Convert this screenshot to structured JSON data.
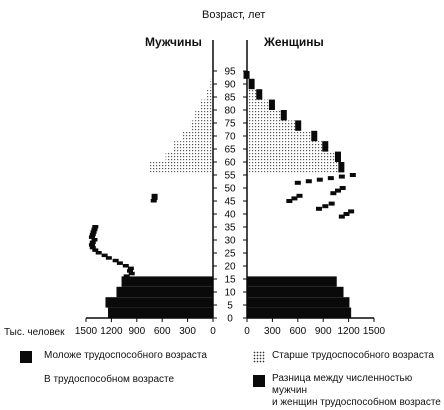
{
  "chart_data": {
    "type": "bar",
    "y_label": "Возраст, лет",
    "x_unit": "Тыс. человек",
    "left_title": "Мужчины",
    "right_title": "Женщины",
    "x_ticks": [
      0,
      300,
      600,
      900,
      1200,
      1500
    ],
    "y_ticks": [
      0,
      5,
      10,
      15,
      20,
      25,
      30,
      35,
      40,
      45,
      50,
      55,
      60,
      65,
      70,
      75,
      80,
      85,
      90,
      95
    ],
    "xlim": [
      0,
      1500
    ],
    "ylim": [
      0,
      100
    ],
    "series_names": {
      "young": "Моложе трудоспособного возраста",
      "working": "В трудоспособном возрасте",
      "old": "Старше трудоспособного возраста",
      "difference": "Разница между численностью мужчин и женщин трудоспособном возрасте"
    },
    "bands": [
      {
        "range": [
          0,
          4
        ],
        "men": 1240,
        "women": 1230,
        "category": "young"
      },
      {
        "range": [
          4,
          8
        ],
        "men": 1270,
        "women": 1210,
        "category": "young"
      },
      {
        "range": [
          8,
          12
        ],
        "men": 1140,
        "women": 1140,
        "category": "young"
      },
      {
        "range": [
          12,
          16
        ],
        "men": 1080,
        "women": 1060,
        "category": "young"
      },
      {
        "range": [
          56,
          60
        ],
        "men": 760,
        "women": 1150,
        "category": "old"
      },
      {
        "range": [
          60,
          64
        ],
        "men": 560,
        "women": 1110,
        "category": "old"
      },
      {
        "range": [
          64,
          68
        ],
        "men": 460,
        "women": 960,
        "category": "old"
      },
      {
        "range": [
          68,
          72
        ],
        "men": 360,
        "women": 830,
        "category": "old"
      },
      {
        "range": [
          72,
          76
        ],
        "men": 270,
        "women": 640,
        "category": "old"
      },
      {
        "range": [
          76,
          80
        ],
        "men": 210,
        "women": 470,
        "category": "old"
      },
      {
        "range": [
          80,
          84
        ],
        "men": 150,
        "women": 330,
        "category": "old"
      },
      {
        "range": [
          84,
          88
        ],
        "men": 70,
        "women": 180,
        "category": "old"
      },
      {
        "range": [
          88,
          92
        ],
        "men": 30,
        "women": 90,
        "category": "old"
      },
      {
        "range": [
          92,
          95
        ],
        "men": 10,
        "women": 30,
        "category": "old"
      }
    ],
    "men_working_edge": [
      [
        16,
        1020
      ],
      [
        17,
        960
      ],
      [
        18,
        980
      ],
      [
        19,
        970
      ],
      [
        20,
        1030
      ],
      [
        21,
        1100
      ],
      [
        22,
        1150
      ],
      [
        23,
        1230
      ],
      [
        24,
        1280
      ],
      [
        25,
        1350
      ],
      [
        26,
        1390
      ],
      [
        27,
        1420
      ],
      [
        28,
        1430
      ],
      [
        29,
        1420
      ],
      [
        30,
        1400
      ],
      [
        31,
        1430
      ],
      [
        32,
        1420
      ],
      [
        33,
        1410
      ],
      [
        34,
        1400
      ],
      [
        35,
        1390
      ],
      [
        45,
        700
      ],
      [
        46,
        690
      ],
      [
        47,
        690
      ]
    ],
    "difference_segments": [
      {
        "range": [
          52,
          55
        ],
        "from": 600,
        "to": 1250
      },
      {
        "range": [
          48,
          50
        ],
        "from": 1020,
        "to": 1130
      },
      {
        "range": [
          45,
          47
        ],
        "from": 500,
        "to": 620
      },
      {
        "range": [
          42,
          44
        ],
        "from": 850,
        "to": 1000
      },
      {
        "range": [
          39,
          41
        ],
        "from": 1120,
        "to": 1230
      }
    ],
    "legend": [
      {
        "label": "Моложе трудоспособного возраста",
        "style": "solid"
      },
      {
        "label": "Старше трудоспособного возраста",
        "style": "stipple"
      },
      {
        "label": "В трудоспособном возрасте",
        "style": "none"
      },
      {
        "label": "Разница между численностью мужчин\nи женщин трудоспособном возрасте",
        "style": "solid"
      }
    ],
    "colors": {
      "ink": "#0a0a0a",
      "stipple": "#555555",
      "background": "#ffffff"
    }
  }
}
